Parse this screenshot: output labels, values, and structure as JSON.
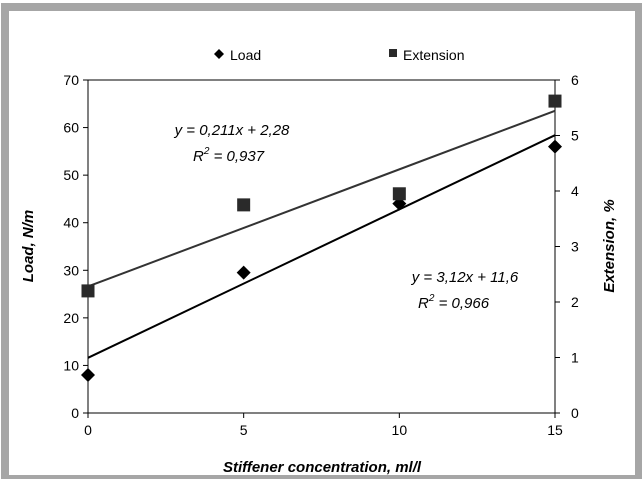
{
  "chart_data": {
    "type": "scatter",
    "xlabel": "Stiffener concentration, ml/l",
    "ylabel_left": "Load, N/m",
    "ylabel_right": "Extension, %",
    "x_ticks": [
      "0",
      "5",
      "10",
      "15"
    ],
    "y_left_ticks": [
      "0",
      "10",
      "20",
      "30",
      "40",
      "50",
      "60",
      "70"
    ],
    "y_right_ticks": [
      "0",
      "1",
      "2",
      "3",
      "4",
      "5",
      "6"
    ],
    "xlim": [
      0,
      15
    ],
    "ylim_left": [
      0,
      70
    ],
    "ylim_right": [
      0,
      6
    ],
    "legend_position": "top",
    "series": [
      {
        "name": "Load",
        "axis": "left",
        "marker": "diamond",
        "x": [
          0,
          5,
          10,
          15
        ],
        "y": [
          8,
          29.5,
          44,
          56
        ],
        "trend": {
          "slope": 3.12,
          "intercept": 11.6
        },
        "equation": "y = 3,12x + 11,6",
        "r2_label": "R",
        "r2_value": " = 0,966"
      },
      {
        "name": "Extension",
        "axis": "right",
        "marker": "square",
        "x": [
          0,
          5,
          10,
          15
        ],
        "y": [
          2.2,
          3.75,
          3.95,
          5.62
        ],
        "trend": {
          "slope": 0.211,
          "intercept": 2.28
        },
        "equation": "y = 0,211x + 2,28",
        "r2_label": "R",
        "r2_value": " = 0,937"
      }
    ],
    "r2_superscript": "2"
  },
  "colors": {
    "frame": "#a6a6a6",
    "load_trend": "#000000",
    "extension_trend": "#333333",
    "markers": "#000000",
    "square_marker": "#2a2a2a"
  }
}
